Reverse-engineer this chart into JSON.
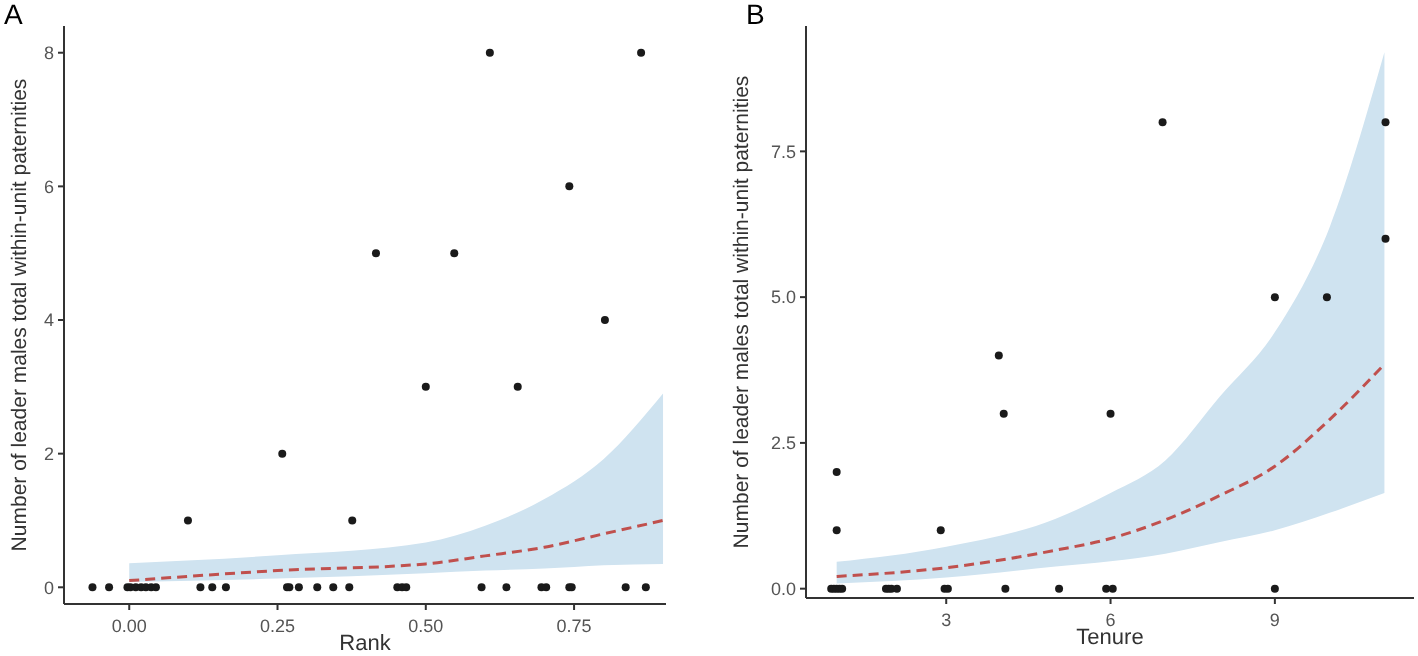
{
  "chart_data": [
    {
      "type": "scatter",
      "title": "A",
      "xlabel": "Rank",
      "ylabel": "Number of leader males total within-unit paternities",
      "xlim": [
        -0.11,
        0.905
      ],
      "xticks": [
        {
          "value": 0,
          "label": "0.00"
        },
        {
          "value": 0.25,
          "label": "0.25"
        },
        {
          "value": 0.5,
          "label": "0.50"
        },
        {
          "value": 0.75,
          "label": "0.75"
        }
      ],
      "ylim": [
        -0.25,
        8.4
      ],
      "yticks": [
        0,
        2,
        4,
        6,
        8
      ],
      "grid": false,
      "series": [
        {
          "color": "#1a1a1a",
          "marker": "circle",
          "x": [
            -0.062,
            -0.034,
            -0.003,
            0.002,
            0.011,
            0.02,
            0.028,
            0.037,
            0.045,
            0.12,
            0.14,
            0.163,
            0.266,
            0.27,
            0.286,
            0.317,
            0.344,
            0.371,
            0.452,
            0.46,
            0.467,
            0.594,
            0.636,
            0.695,
            0.703,
            0.742,
            0.746,
            0.837,
            0.871,
            0.099,
            0.258,
            0.376,
            0.416,
            0.5,
            0.548,
            0.608,
            0.655,
            0.742,
            0.802,
            0.863
          ],
          "values": [
            0,
            0,
            0,
            0,
            0,
            0,
            0,
            0,
            0,
            0,
            0,
            0,
            0,
            0,
            0,
            0,
            0,
            0,
            0,
            0,
            0,
            0,
            0,
            0,
            0,
            0,
            0,
            0,
            0,
            1,
            2,
            1,
            5,
            3,
            5,
            8,
            3,
            6,
            4,
            8
          ]
        },
        {
          "type": "line",
          "color": "#c0504d",
          "line_style": "dashed",
          "marker": "none",
          "x": [
            0,
            0.25,
            0.5,
            0.6,
            0.7,
            0.8,
            0.9
          ],
          "values": [
            0.1,
            0.25,
            0.35,
            0.47,
            0.6,
            0.8,
            1.0
          ],
          "lower": [
            0.08,
            0.13,
            0.21,
            0.25,
            0.28,
            0.33,
            0.35
          ],
          "upper": [
            0.36,
            0.48,
            0.67,
            0.92,
            1.32,
            1.92,
            2.9
          ]
        }
      ]
    },
    {
      "type": "scatter",
      "title": "B",
      "xlabel": "Tenure",
      "ylabel": "Number of leader males total within-unit paternities",
      "xlim": [
        0.44,
        11.54
      ],
      "xticks": [
        3,
        6,
        9
      ],
      "ylim": [
        -0.16,
        9.65
      ],
      "yticks": [
        {
          "value": 0,
          "label": "0.0"
        },
        2.5,
        {
          "value": 5,
          "label": "5.0"
        },
        7.5
      ],
      "grid": false,
      "series": [
        {
          "color": "#1a1a1a",
          "marker": "circle",
          "x": [
            0.9,
            0.95,
            1.0,
            1.05,
            1.1,
            1.9,
            1.95,
            2.0,
            2.1,
            2.97,
            3.03,
            4.08,
            5.06,
            5.92,
            6.04,
            9.0,
            1,
            1,
            2.9,
            3.96,
            4.05,
            6,
            6.95,
            9,
            9.95,
            11.02,
            11.02
          ],
          "values": [
            0,
            0,
            0,
            0,
            0,
            0,
            0,
            0,
            0,
            0,
            0,
            0,
            0,
            0,
            0,
            0,
            2,
            1,
            1,
            4,
            3,
            3,
            8,
            5,
            5,
            8,
            6
          ]
        },
        {
          "type": "line",
          "color": "#c0504d",
          "line_style": "dashed",
          "marker": "none",
          "x": [
            1,
            3,
            5,
            6,
            7,
            8,
            9,
            10,
            11
          ],
          "values": [
            0.21,
            0.36,
            0.66,
            0.86,
            1.18,
            1.6,
            2.1,
            2.9,
            3.85
          ],
          "lower": [
            0.09,
            0.19,
            0.38,
            0.47,
            0.6,
            0.8,
            1.0,
            1.3,
            1.64
          ],
          "upper": [
            0.46,
            0.72,
            1.2,
            1.64,
            2.2,
            3.3,
            4.4,
            6.2,
            9.2
          ]
        }
      ]
    }
  ]
}
